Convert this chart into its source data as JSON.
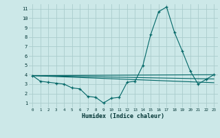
{
  "title": "",
  "xlabel": "Humidex (Indice chaleur)",
  "bg_color": "#cce8e8",
  "grid_color": "#aacccc",
  "line_color": "#006666",
  "xlim": [
    -0.5,
    23.5
  ],
  "ylim": [
    0.5,
    11.5
  ],
  "xticks": [
    0,
    1,
    2,
    3,
    4,
    5,
    6,
    7,
    8,
    9,
    10,
    11,
    12,
    13,
    14,
    15,
    16,
    17,
    18,
    19,
    20,
    21,
    22,
    23
  ],
  "yticks": [
    1,
    2,
    3,
    4,
    5,
    6,
    7,
    8,
    9,
    10,
    11
  ],
  "main_series": {
    "x": [
      0,
      1,
      2,
      3,
      4,
      5,
      6,
      7,
      8,
      9,
      10,
      11,
      12,
      13,
      14,
      15,
      16,
      17,
      18,
      19,
      20,
      21,
      22,
      23
    ],
    "y": [
      3.9,
      3.3,
      3.2,
      3.1,
      3.0,
      2.6,
      2.5,
      1.7,
      1.6,
      1.0,
      1.5,
      1.6,
      3.2,
      3.3,
      5.0,
      8.3,
      10.7,
      11.2,
      8.5,
      6.5,
      4.4,
      3.0,
      3.5,
      4.0
    ]
  },
  "ref_lines": [
    {
      "x": [
        0,
        23
      ],
      "y": [
        3.9,
        4.0
      ]
    },
    {
      "x": [
        0,
        23
      ],
      "y": [
        3.9,
        3.55
      ]
    },
    {
      "x": [
        0,
        23
      ],
      "y": [
        3.9,
        3.15
      ]
    }
  ]
}
